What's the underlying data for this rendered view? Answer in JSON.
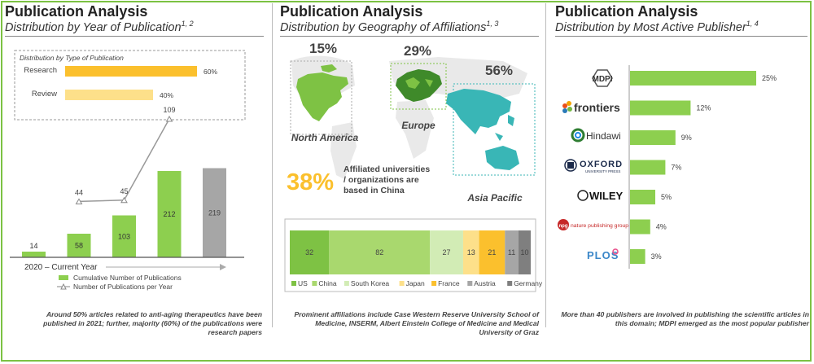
{
  "colors": {
    "green": "#8dcf4f",
    "dark_green": "#3f8a2a",
    "yellow": "#fbc02d",
    "light_yellow": "#fde08a",
    "gray": "#a6a6a6",
    "border": "#7cc243"
  },
  "panel1": {
    "title": "Publication Analysis",
    "subtitle": "Distribution by Year of Publication",
    "subtitle_sup": "1, 2",
    "type_box_title": "Distribution by Type of Publication",
    "footer": "Around 50% articles related to anti-aging therapeutics have been published in 2021; further, majority (60%) of the publications were research papers"
  },
  "panel2": {
    "title": "Publication Analysis",
    "subtitle": "Distribution by Geography of Affiliations",
    "subtitle_sup": "1, 3",
    "highlight_pct": "38%",
    "highlight_text_1": "Affiliated universities",
    "highlight_text_2": "/ organizations are",
    "highlight_text_3": "based in China",
    "footer": "Prominent affiliations include Case Western Reserve University School of Medicine, INSERM, Albert Einstein College of Medicine and Medical University of Graz"
  },
  "panel3": {
    "title": "Publication Analysis",
    "subtitle": "Distribution by Most Active Publisher",
    "subtitle_sup": "1, 4",
    "footer": "More than 40 publishers are involved in publishing the scientific articles in this domain; MDPI emerged as the most popular publisher"
  },
  "chart_data": [
    {
      "type": "bar",
      "title": "Distribution by Type of Publication",
      "orientation": "horizontal",
      "categories": [
        "Research",
        "Review"
      ],
      "values": [
        60,
        40
      ],
      "value_labels": [
        "60%",
        "40%"
      ],
      "colors": [
        "#fbc02d",
        "#fde08a"
      ]
    },
    {
      "type": "bar",
      "xlabel": "2020 – Current Year",
      "legend_placement": "bottom",
      "series": [
        {
          "name": "Cumulative Number of Publications",
          "type": "bar",
          "values": [
            14,
            58,
            103,
            212,
            219
          ],
          "colors": [
            "#8dcf4f",
            "#8dcf4f",
            "#8dcf4f",
            "#8dcf4f",
            "#a6a6a6"
          ]
        },
        {
          "name": "Number of Publications per Year",
          "type": "line",
          "points": [
            {
              "index": 1,
              "value": 44
            },
            {
              "index": 2,
              "value": 45
            },
            {
              "index": 3,
              "value": 109
            }
          ]
        }
      ]
    },
    {
      "type": "map",
      "regions": [
        {
          "name": "North America",
          "value": "15%"
        },
        {
          "name": "Europe",
          "value": "29%"
        },
        {
          "name": "Asia Pacific",
          "value": "56%"
        }
      ]
    },
    {
      "type": "bar",
      "stacked": true,
      "orientation": "horizontal",
      "legend_placement": "bottom",
      "series": [
        {
          "name": "US",
          "value": 32,
          "color": "#7ec244"
        },
        {
          "name": "China",
          "value": 82,
          "color": "#a9d86e"
        },
        {
          "name": "South Korea",
          "value": 27,
          "color": "#d2ecb5"
        },
        {
          "name": "Japan",
          "value": 13,
          "color": "#fde08a"
        },
        {
          "name": "France",
          "value": 21,
          "color": "#fbc02d"
        },
        {
          "name": "Austria",
          "value": 11,
          "color": "#a6a6a6"
        },
        {
          "name": "Germany",
          "value": 10,
          "color": "#7f7f7f"
        }
      ]
    },
    {
      "type": "bar",
      "orientation": "horizontal",
      "categories": [
        "MDPI",
        "frontiers",
        "Hindawi",
        "OXFORD UNIVERSITY PRESS",
        "WILEY",
        "npg nature publishing group",
        "PLOS"
      ],
      "values": [
        25,
        12,
        9,
        7,
        5,
        4,
        3
      ],
      "value_labels": [
        "25%",
        "12%",
        "9%",
        "7%",
        "5%",
        "4%",
        "3%"
      ],
      "colors": [
        "#8dcf4f"
      ]
    }
  ],
  "logos": {
    "mdpi": "MDPI",
    "frontiers": "frontiers",
    "hindawi": "Hindawi",
    "oxford": "OXFORD",
    "oxford_sub": "UNIVERSITY PRESS",
    "wiley": "WILEY",
    "npg_mark": "npg",
    "npg_text": "nature publishing group",
    "plos": "PLOS"
  }
}
